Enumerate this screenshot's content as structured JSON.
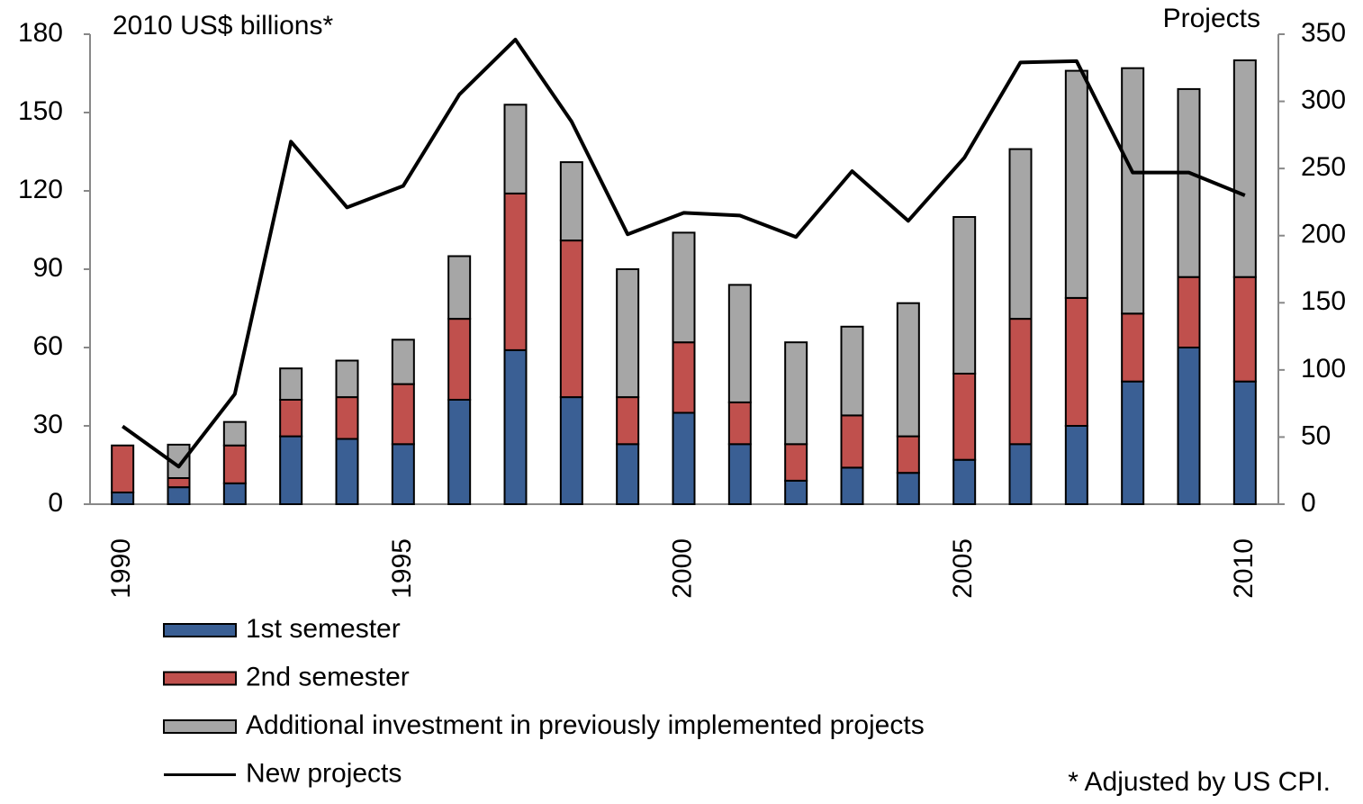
{
  "chart_data": {
    "type": "bar",
    "stacked": true,
    "y_label": "2010 US$  billions*",
    "y2_label": "Projects",
    "footnote": "* Adjusted by US CPI.",
    "categories": [
      "1990",
      null,
      null,
      null,
      null,
      "1995",
      null,
      null,
      null,
      null,
      "2000",
      null,
      null,
      null,
      null,
      "2005",
      null,
      null,
      null,
      null,
      "2010"
    ],
    "series": [
      {
        "name": "1st semester",
        "type": "bar",
        "color": "#3a5f94",
        "values": [
          4.5,
          6.5,
          8,
          26,
          25,
          23,
          40,
          59,
          41,
          23,
          35,
          23,
          9,
          14,
          12,
          17,
          23,
          30,
          47,
          60,
          47
        ]
      },
      {
        "name": "2nd semester",
        "type": "bar",
        "color": "#c0504d",
        "values": [
          18,
          3.5,
          14.5,
          14,
          16,
          23,
          31,
          60,
          60,
          18,
          27,
          16,
          14,
          20,
          14,
          33,
          48,
          49,
          26,
          27,
          40
        ]
      },
      {
        "name": "Additional investment in previously implemented projects",
        "type": "bar",
        "color": "#a6a6a6",
        "values": [
          0,
          12.8,
          9,
          12,
          14,
          17,
          24,
          34,
          30,
          49,
          42,
          45,
          39,
          34,
          51,
          60,
          65,
          87,
          94,
          72,
          83
        ]
      },
      {
        "name": "New projects",
        "type": "line",
        "axis": "y2",
        "color": "#000000",
        "values": [
          58,
          28,
          82,
          270,
          221,
          237,
          305,
          346,
          285,
          201,
          217,
          215,
          199,
          248,
          211,
          258,
          329,
          330,
          247,
          247,
          230
        ]
      }
    ],
    "ylim": [
      0,
      180
    ],
    "yticks": [
      0,
      30,
      60,
      90,
      120,
      150,
      180
    ],
    "y2lim": [
      0,
      350
    ],
    "y2ticks": [
      0,
      50,
      100,
      150,
      200,
      250,
      300,
      350
    ],
    "grid": false
  }
}
